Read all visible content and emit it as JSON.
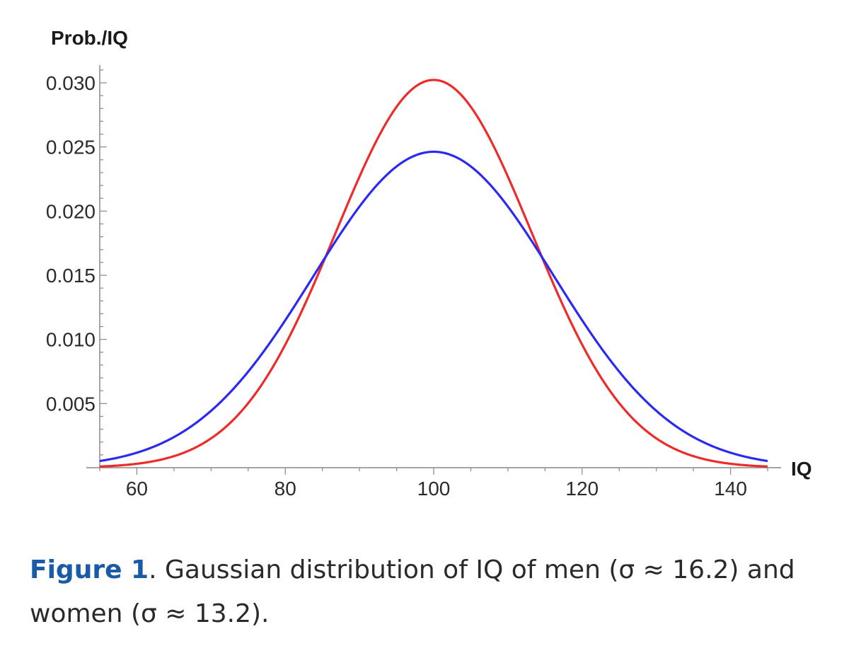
{
  "chart_data": {
    "type": "line",
    "ylabel": "Prob./IQ",
    "xlabel": "IQ",
    "xlim": [
      55,
      145
    ],
    "ylim": [
      0,
      0.031
    ],
    "x_ticks": [
      60,
      80,
      100,
      120,
      140
    ],
    "y_ticks": [
      0.005,
      0.01,
      0.015,
      0.02,
      0.025,
      0.03
    ],
    "x_tick_labels": [
      "60",
      "80",
      "100",
      "120",
      "140"
    ],
    "y_tick_labels": [
      "0.005",
      "0.010",
      "0.015",
      "0.020",
      "0.025",
      "0.030"
    ],
    "grid": false,
    "series": [
      {
        "color": "#ee2a2a",
        "mean": 100,
        "sigma": 13.2,
        "x": [
          55,
          60,
          65,
          70,
          75,
          80,
          85,
          90,
          95,
          100,
          105,
          110,
          115,
          120,
          125,
          130,
          135,
          140,
          145
        ],
        "y": [
          0.0002,
          0.0003,
          0.0011,
          0.0033,
          0.0071,
          0.0127,
          0.019,
          0.0253,
          0.028,
          0.0302,
          0.028,
          0.0253,
          0.019,
          0.0127,
          0.0071,
          0.0033,
          0.0011,
          0.0003,
          0.0002
        ]
      },
      {
        "color": "#2a2af2",
        "mean": 100,
        "sigma": 16.2,
        "x": [
          55,
          60,
          65,
          70,
          75,
          80,
          85,
          90,
          95,
          100,
          105,
          110,
          115,
          120,
          125,
          130,
          135,
          140,
          145
        ],
        "y": [
          0.0005,
          0.0012,
          0.0024,
          0.0044,
          0.0075,
          0.0113,
          0.016,
          0.0208,
          0.0235,
          0.0246,
          0.0235,
          0.0208,
          0.016,
          0.0113,
          0.0075,
          0.0044,
          0.0024,
          0.0012,
          0.0005
        ]
      }
    ]
  },
  "caption": {
    "label": "Figure 1",
    "text": ". Gaussian distribution of IQ of men (σ ≈ 16.2) and women (σ ≈ 13.2)."
  }
}
